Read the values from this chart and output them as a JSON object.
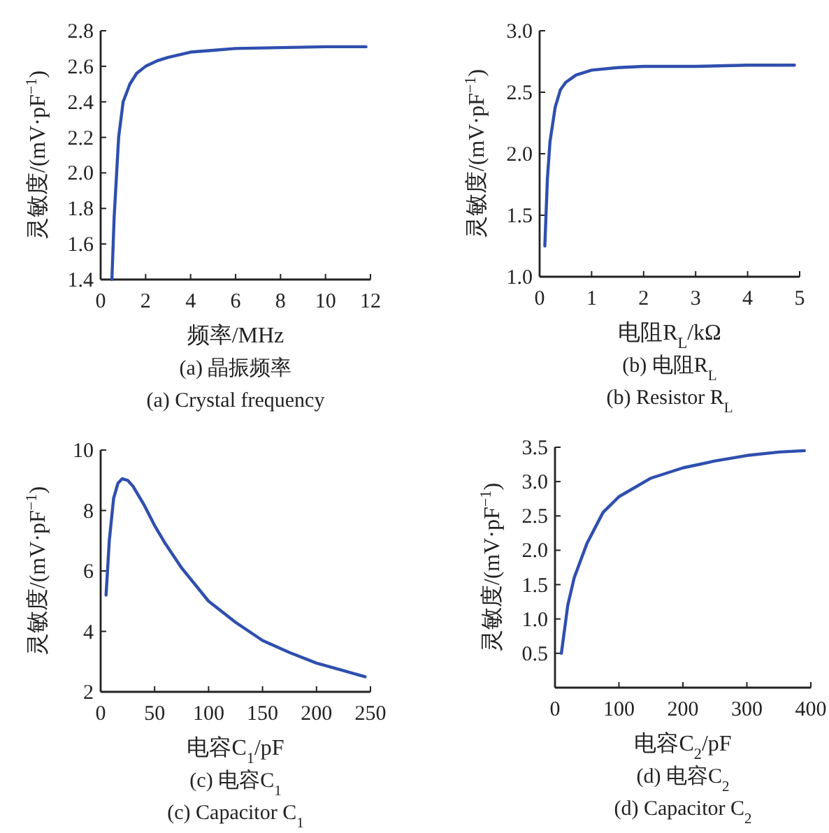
{
  "chart_data": [
    {
      "type": "line",
      "xlabel": "频率/MHz",
      "ylabel": "灵敏度/(mV·pF$^{−1}$)",
      "annotations": [
        "(a) 晶振频率",
        "(a) Crystal frequency"
      ],
      "xlim": [
        0,
        12
      ],
      "ylim": [
        1.4,
        2.8
      ],
      "xticks": [
        0,
        2,
        4,
        6,
        8,
        10,
        12
      ],
      "yticks": [
        1.4,
        1.6,
        1.8,
        {
          "value": 2,
          "label": "2.0"
        },
        2.2,
        2.4,
        2.6,
        2.8
      ],
      "series": [
        {
          "color": "#2f4fae",
          "x": [
            0.5,
            0.6,
            0.8,
            1.0,
            1.3,
            1.6,
            2,
            2.5,
            3,
            4,
            5,
            6,
            8,
            10,
            11.8
          ],
          "values": [
            1.4,
            1.75,
            2.2,
            2.4,
            2.5,
            2.56,
            2.6,
            2.63,
            2.65,
            2.68,
            2.69,
            2.7,
            2.705,
            2.71,
            2.71
          ]
        }
      ]
    },
    {
      "type": "line",
      "xlabel": "电阻R$_{L}$/kΩ",
      "ylabel": "灵敏度/(mV·pF$^{−1}$)",
      "annotations": [
        "(b) 电阻R$_{L}$",
        "(b) Resistor R$_{L}$"
      ],
      "xlim": [
        0,
        5
      ],
      "ylim": [
        1.0,
        3.0
      ],
      "xticks": [
        0,
        1,
        2,
        3,
        4,
        5
      ],
      "yticks": [
        {
          "value": 1,
          "label": "1.0"
        },
        1.5,
        {
          "value": 2,
          "label": "2.0"
        },
        2.5,
        {
          "value": 3,
          "label": "3.0"
        }
      ],
      "series": [
        {
          "color": "#2f4fae",
          "x": [
            0.1,
            0.15,
            0.2,
            0.3,
            0.4,
            0.5,
            0.7,
            1,
            1.5,
            2,
            3,
            4,
            4.9
          ],
          "values": [
            1.25,
            1.8,
            2.1,
            2.38,
            2.52,
            2.58,
            2.64,
            2.68,
            2.7,
            2.71,
            2.71,
            2.72,
            2.72
          ]
        }
      ]
    },
    {
      "type": "line",
      "xlabel": "电容C$_{1}$/pF",
      "ylabel": "灵敏度/(mV·pF$^{−1}$)",
      "annotations": [
        "(c) 电容C$_{1}$",
        "(c) Capacitor C$_{1}$"
      ],
      "xlim": [
        0,
        250
      ],
      "ylim": [
        2,
        10
      ],
      "xticks": [
        0,
        50,
        100,
        150,
        200,
        250
      ],
      "yticks": [
        2,
        4,
        6,
        8,
        10
      ],
      "series": [
        {
          "color": "#2f4fae",
          "x": [
            5,
            8,
            12,
            16,
            20,
            25,
            30,
            40,
            50,
            60,
            75,
            100,
            125,
            150,
            175,
            200,
            225,
            245
          ],
          "values": [
            5.2,
            7,
            8.4,
            8.9,
            9.05,
            9.0,
            8.8,
            8.2,
            7.5,
            6.9,
            6.1,
            5.0,
            4.3,
            3.7,
            3.3,
            2.95,
            2.7,
            2.5
          ]
        }
      ]
    },
    {
      "type": "line",
      "xlabel": "电容C$_{2}$/pF",
      "ylabel": "灵敏度/(mV·pF$^{−1}$)",
      "annotations": [
        "(d) 电容C$_{2}$",
        "(d) Capacitor C$_{2}$"
      ],
      "xlim": [
        0,
        400
      ],
      "ylim": [
        0,
        3.5
      ],
      "xticks": [
        0,
        100,
        200,
        300,
        400
      ],
      "yticks": [
        0.5,
        {
          "value": 1,
          "label": "1.0"
        },
        1.5,
        {
          "value": 2,
          "label": "2.0"
        },
        2.5,
        {
          "value": 3,
          "label": "3.0"
        },
        3.5
      ],
      "series": [
        {
          "color": "#2f4fae",
          "x": [
            10,
            20,
            30,
            50,
            75,
            100,
            150,
            200,
            250,
            300,
            350,
            390
          ],
          "values": [
            0.5,
            1.2,
            1.6,
            2.1,
            2.55,
            2.78,
            3.05,
            3.2,
            3.3,
            3.38,
            3.43,
            3.45
          ]
        }
      ]
    }
  ]
}
